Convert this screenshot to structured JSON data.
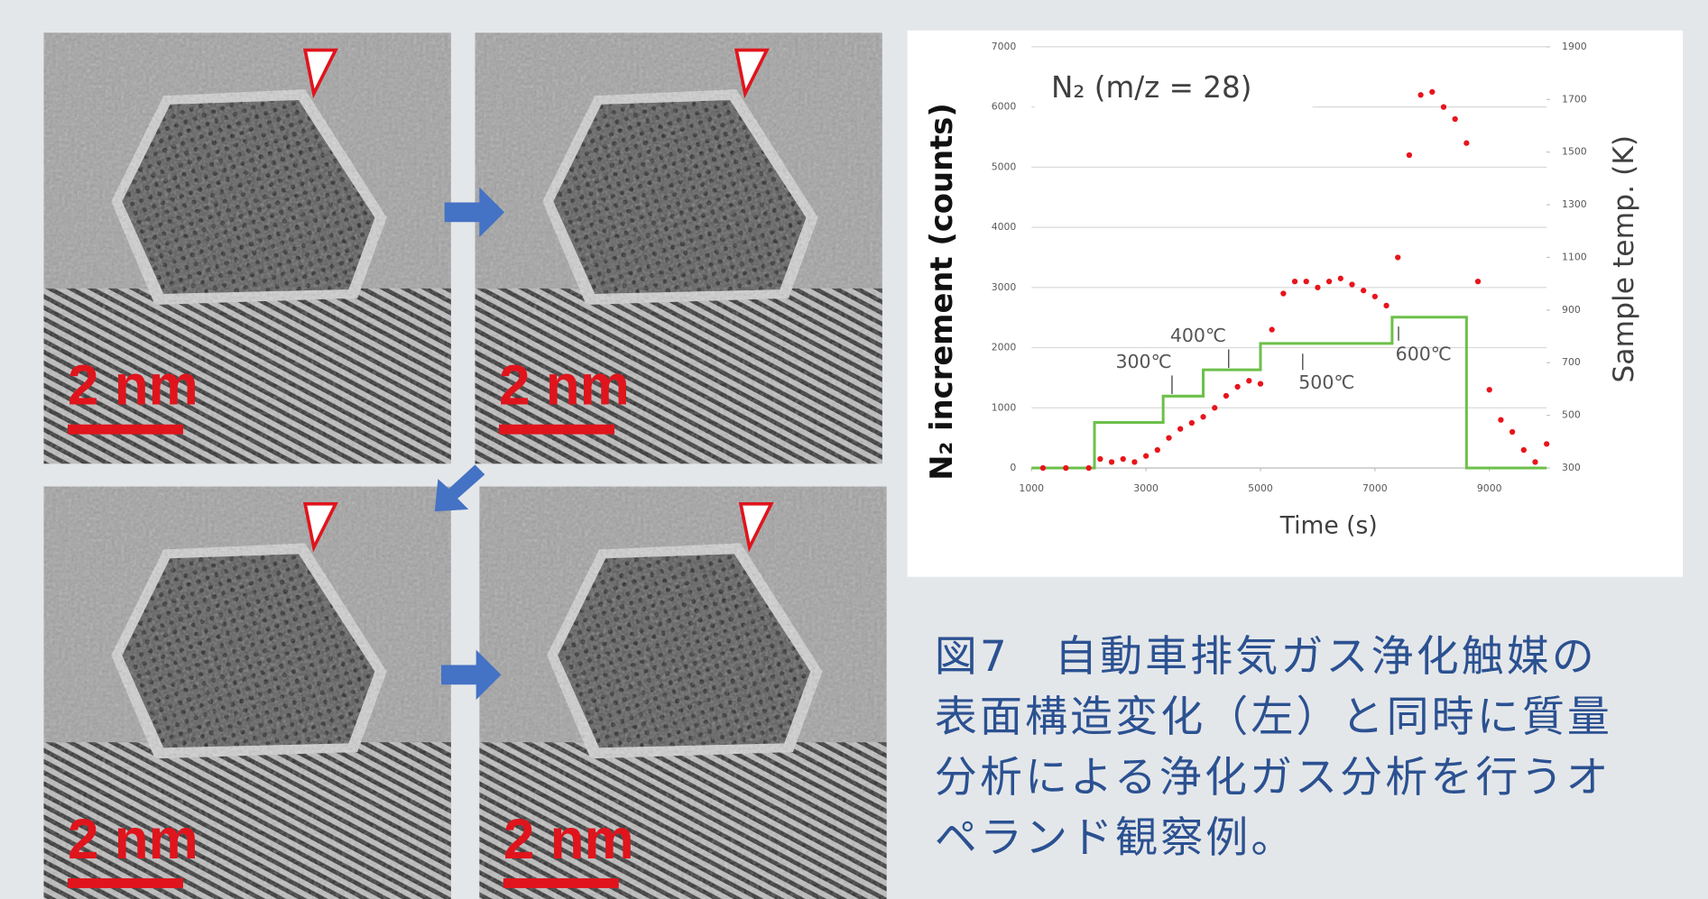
{
  "images": [
    {
      "scale_bar": "2 nm"
    },
    {
      "scale_bar": "2 nm"
    },
    {
      "scale_bar": "2 nm"
    },
    {
      "scale_bar": "2 nm"
    }
  ],
  "chart_data": {
    "type": "scatter",
    "label": "N₂ (m/z = 28)",
    "ylabel": "N₂ increment (counts)",
    "y2label": "Sample temp. (K)",
    "xlabel": "Time (s)",
    "xlim": [
      1000,
      10000
    ],
    "xticks": [
      1000,
      3000,
      5000,
      7000,
      9000
    ],
    "ylim": [
      0,
      7000
    ],
    "yticks": [
      0,
      1000,
      2000,
      3000,
      4000,
      5000,
      6000,
      7000
    ],
    "y2lim": [
      300,
      1900
    ],
    "y2ticks": [
      300,
      500,
      700,
      900,
      1100,
      1300,
      1500,
      1700,
      1900
    ],
    "grid": true,
    "annotations": [
      "300℃",
      "400℃",
      "500℃",
      "600℃"
    ],
    "series": [
      {
        "type": "scatter",
        "color": "#e8141c",
        "x": [
          1200,
          1600,
          2000,
          2200,
          2400,
          2600,
          2800,
          3000,
          3200,
          3400,
          3600,
          3800,
          4000,
          4200,
          4400,
          4600,
          4800,
          5000,
          5200,
          5400,
          5600,
          5800,
          6000,
          6200,
          6400,
          6600,
          6800,
          7000,
          7200,
          7400,
          7600,
          7800,
          8000,
          8200,
          8400,
          8600,
          8800,
          9000,
          9200,
          9400,
          9600,
          9800,
          10000
        ],
        "values": [
          0,
          0,
          0,
          150,
          100,
          150,
          100,
          200,
          300,
          500,
          650,
          750,
          850,
          1000,
          1200,
          1350,
          1450,
          1400,
          2300,
          2900,
          3100,
          3100,
          3000,
          3100,
          3150,
          3050,
          2950,
          2850,
          2700,
          3500,
          5200,
          6200,
          6250,
          6000,
          5800,
          5400,
          3100,
          1300,
          800,
          600,
          300,
          100,
          400
        ]
      },
      {
        "type": "line",
        "step": true,
        "axis": "y2",
        "color": "#6cc04a",
        "x": [
          1000,
          2100,
          3300,
          4000,
          5000,
          7300,
          8600,
          10000
        ],
        "values": [
          300,
          473,
          573,
          673,
          773,
          873,
          300,
          300
        ]
      }
    ]
  },
  "caption": {
    "lines": [
      "図7　自動車排気ガス浄化触媒の",
      "表面構造変化（左）と同時に質量",
      "分析による浄化ガス分析を行うオ",
      "ペランド観察例。"
    ]
  }
}
